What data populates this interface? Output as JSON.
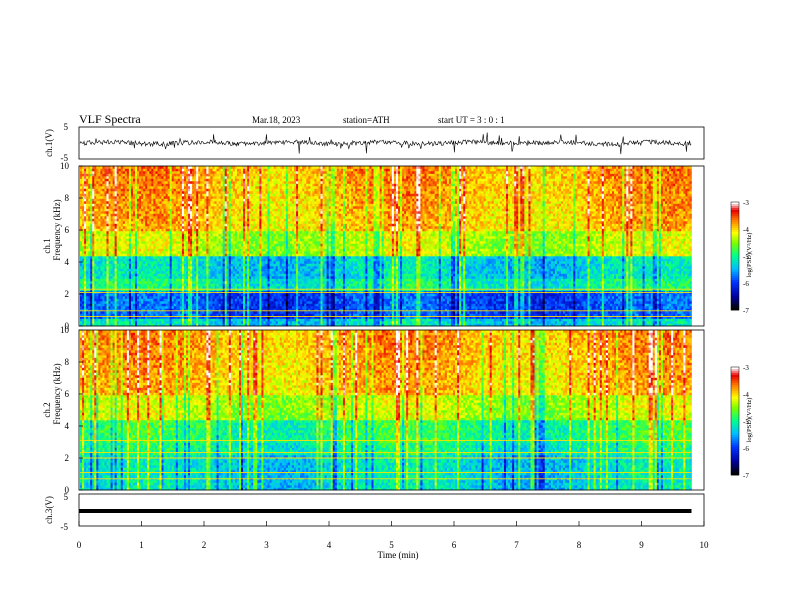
{
  "header": {
    "title": "VLF  Spectra",
    "date": "Mar.18, 2023",
    "station": "station=ATH",
    "start": "start  UT  =    3  : 0   : 1"
  },
  "chart_data": [
    {
      "type": "line",
      "panel": "ch1-waveform",
      "ylabel": "ch.1(V)",
      "y_ticks": [
        "5",
        "-5"
      ],
      "ylim": [
        -5,
        5
      ],
      "xlim": [
        0,
        10
      ],
      "x_end_data": 9.8,
      "series_color": "#000000"
    },
    {
      "type": "heatmap",
      "panel": "ch1-spectrogram",
      "ylabel_lines": [
        "ch.1",
        "Frequency  (kHz)"
      ],
      "y_ticks": [
        "0",
        "2",
        "4",
        "6",
        "8",
        "10"
      ],
      "ylim": [
        0,
        10
      ],
      "xlim": [
        0,
        10
      ],
      "colorbar": {
        "label": "log(PSD)(V²/Hz)",
        "ticks": [
          "-3",
          "-4",
          "-5",
          "-6",
          "-7"
        ],
        "range": [
          -7,
          -3
        ]
      }
    },
    {
      "type": "heatmap",
      "panel": "ch2-spectrogram",
      "ylabel_lines": [
        "ch.2",
        "Frequency  (kHz)"
      ],
      "y_ticks": [
        "0",
        "2",
        "4",
        "6",
        "8",
        "10"
      ],
      "ylim": [
        0,
        10
      ],
      "xlim": [
        0,
        10
      ],
      "colorbar": {
        "label": "log(PSD)(V²/Hz)",
        "ticks": [
          "-3",
          "-4",
          "-5",
          "-6",
          "-7"
        ],
        "range": [
          -7,
          -3
        ]
      }
    },
    {
      "type": "line",
      "panel": "ch3-waveform",
      "ylabel": "ch.3(V)",
      "y_ticks": [
        "5",
        "-5"
      ],
      "ylim": [
        -5,
        5
      ],
      "xlim": [
        0,
        10
      ],
      "x_end_data": 9.8,
      "level": -1,
      "series_color": "#000000",
      "xlabel": "Time  (min)",
      "x_ticks": [
        "0",
        "1",
        "2",
        "3",
        "4",
        "5",
        "6",
        "7",
        "8",
        "9",
        "10"
      ]
    }
  ]
}
